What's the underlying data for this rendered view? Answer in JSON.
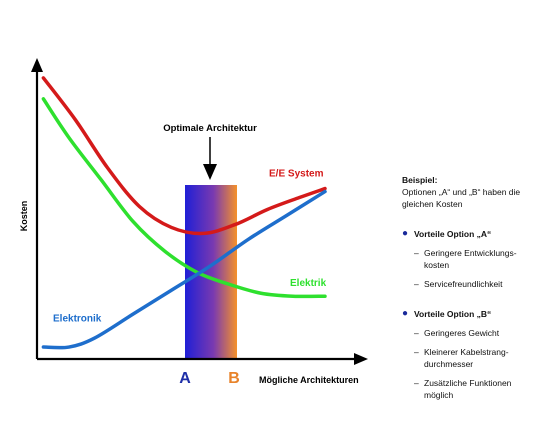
{
  "chart_data": {
    "type": "line",
    "ylabel": "Kosten",
    "xlabel": "Mögliche Architekturen",
    "annotation": "Optimale Architektur",
    "x_markers": [
      {
        "label": "A",
        "color": "#1f2fa8"
      },
      {
        "label": "B",
        "color": "#e8832a"
      }
    ],
    "series": [
      {
        "name": "E/E System",
        "color": "#d41a1a",
        "points": [
          [
            0.02,
            0.94
          ],
          [
            0.12,
            0.8
          ],
          [
            0.22,
            0.64
          ],
          [
            0.32,
            0.51
          ],
          [
            0.42,
            0.44
          ],
          [
            0.52,
            0.42
          ],
          [
            0.62,
            0.45
          ],
          [
            0.72,
            0.5
          ],
          [
            0.82,
            0.54
          ],
          [
            0.9,
            0.57
          ]
        ]
      },
      {
        "name": "Elektrik",
        "color": "#2ee02e",
        "points": [
          [
            0.02,
            0.87
          ],
          [
            0.1,
            0.74
          ],
          [
            0.2,
            0.6
          ],
          [
            0.3,
            0.46
          ],
          [
            0.4,
            0.36
          ],
          [
            0.5,
            0.29
          ],
          [
            0.6,
            0.25
          ],
          [
            0.7,
            0.22
          ],
          [
            0.8,
            0.21
          ],
          [
            0.9,
            0.21
          ]
        ]
      },
      {
        "name": "Elektronik",
        "color": "#1e6ecc",
        "points": [
          [
            0.02,
            0.04
          ],
          [
            0.1,
            0.04
          ],
          [
            0.18,
            0.07
          ],
          [
            0.3,
            0.15
          ],
          [
            0.42,
            0.23
          ],
          [
            0.54,
            0.31
          ],
          [
            0.66,
            0.4
          ],
          [
            0.78,
            0.48
          ],
          [
            0.9,
            0.56
          ]
        ]
      }
    ]
  },
  "side": {
    "heading": "Beispiel:",
    "intro": "Optionen „A“ und „B“ haben die gleichen Kosten",
    "option_a": {
      "title": "Vorteile Option  „A“",
      "items": [
        "Geringere Entwicklungs-kosten",
        "Servicefreundlichkeit"
      ]
    },
    "option_b": {
      "title": "Vorteile Option  „B“",
      "items": [
        "Geringeres Gewicht",
        "Kleinerer Kabelstrang-durchmesser",
        "Zusätzliche Funktionen möglich"
      ]
    }
  }
}
